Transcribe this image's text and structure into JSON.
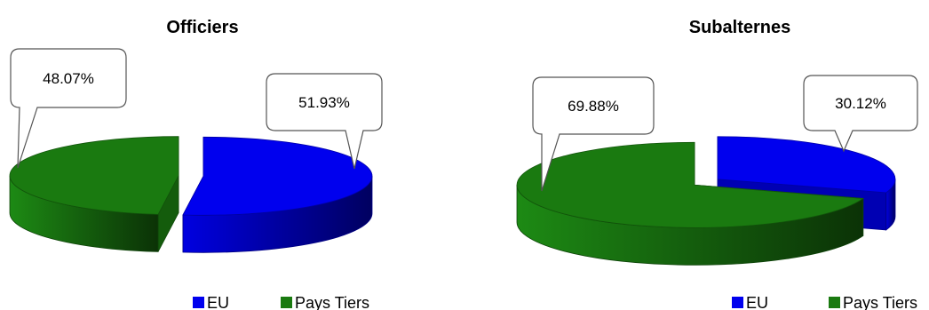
{
  "chart_data": [
    {
      "type": "pie",
      "title": "Officiers",
      "categories": [
        "EU",
        "Pays Tiers"
      ],
      "values": [
        51.93,
        48.07
      ],
      "data_labels": [
        "51.93%",
        "48.07%"
      ],
      "colors": [
        "#0000ee",
        "#1a7a10"
      ],
      "legend": "bottom",
      "exploded": true,
      "three_d": true
    },
    {
      "type": "pie",
      "title": "Subalternes",
      "categories": [
        "EU",
        "Pays Tiers"
      ],
      "values": [
        30.12,
        69.88
      ],
      "data_labels": [
        "30.12%",
        "69.88%"
      ],
      "colors": [
        "#0000ee",
        "#1a7a10"
      ],
      "legend": "bottom",
      "exploded": true,
      "three_d": true
    }
  ]
}
